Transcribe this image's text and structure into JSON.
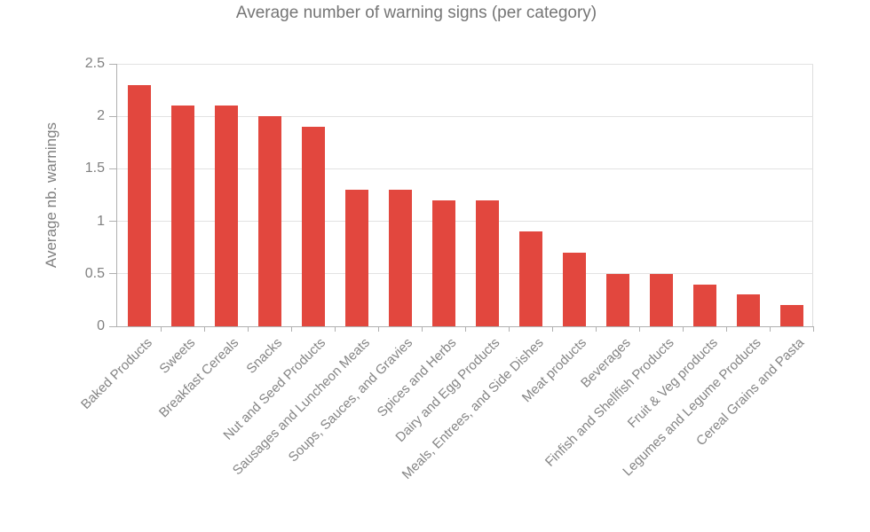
{
  "title": "Average number of warning signs (per category)",
  "colors": {
    "bar": "#e2473e",
    "title_text": "#757575",
    "axis_text": "#808080",
    "gridline": "#e2e2e2",
    "axis_line": "#b0b0b0"
  },
  "chart_data": {
    "type": "bar",
    "title": "Average number of warning signs (per category)",
    "xlabel": "",
    "ylabel": "Average nb. warnings",
    "ylim": [
      0,
      2.5
    ],
    "yticks": [
      0,
      0.5,
      1,
      1.5,
      2,
      2.5
    ],
    "ytick_labels": [
      "0",
      "0.5",
      "1",
      "1.5",
      "2",
      "2.5"
    ],
    "grid": true,
    "legend_position": "none",
    "bar_color": "#e2473e",
    "categories": [
      "Baked Products",
      "Sweets",
      "Breakfast Cereals",
      "Snacks",
      "Nut and Seed Products",
      "Sausages and Luncheon Meats",
      "Soups, Sauces, and Gravies",
      "Spices and Herbs",
      "Dairy and Egg Products",
      "Meals, Entrees, and Side Dishes",
      "Meat products",
      "Beverages",
      "Finfish and Shellfish Products",
      "Fruit & Veg products",
      "Legumes and Legume Products",
      "Cereal Grains and Pasta"
    ],
    "values": [
      2.3,
      2.1,
      2.1,
      2.0,
      1.9,
      1.3,
      1.3,
      1.2,
      1.2,
      0.9,
      0.7,
      0.5,
      0.5,
      0.4,
      0.3,
      0.2
    ]
  }
}
